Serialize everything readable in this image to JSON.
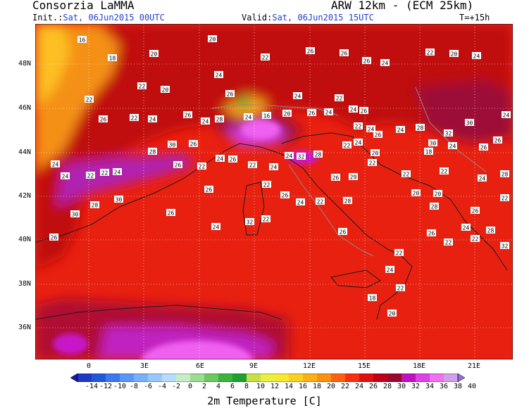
{
  "header": {
    "org": "Consorzia LaMMA",
    "model": "ARW 12km - (ECM 25km)",
    "init_label": "Init.:",
    "init_value": "Sat, 06Jun2015 00UTC",
    "valid_label": "Valid:",
    "valid_value": "Sat, 06Jun2015 15UTC",
    "step": "T=+15h"
  },
  "axes": {
    "lat_labels": [
      "48N",
      "46N",
      "44N",
      "42N",
      "40N",
      "38N",
      "36N"
    ],
    "lon_labels": [
      "0",
      "3E",
      "6E",
      "9E",
      "12E",
      "15E",
      "18E",
      "21E"
    ]
  },
  "colorbar": {
    "title": "2m Temperature [C]",
    "ticks": [
      "-14",
      "-12",
      "-10",
      "-8",
      "-6",
      "-4",
      "-2",
      "0",
      "2",
      "4",
      "6",
      "8",
      "10",
      "12",
      "14",
      "16",
      "18",
      "20",
      "22",
      "24",
      "26",
      "28",
      "30",
      "32",
      "34",
      "36",
      "38",
      "40"
    ],
    "colors": [
      "#1818a8",
      "#1c3ac4",
      "#2058dc",
      "#3c78ec",
      "#5a96f4",
      "#78b0f8",
      "#98c8fb",
      "#b8dcfd",
      "#c8ecc8",
      "#9cdc90",
      "#6cc860",
      "#3cb43c",
      "#20a030",
      "#c8e048",
      "#e8f040",
      "#f8e830",
      "#fcd020",
      "#fcb018",
      "#fc9010",
      "#fc6010",
      "#f83010",
      "#e01010",
      "#c00018",
      "#980830",
      "#c010c0",
      "#e040e8",
      "#f070f0",
      "#d0a0e8",
      "#9070d8"
    ]
  },
  "point_labels": [
    {
      "t": "16"
    },
    {
      "t": "18"
    },
    {
      "t": "20"
    },
    {
      "t": "20"
    },
    {
      "t": "22"
    },
    {
      "t": "20"
    },
    {
      "t": "24"
    },
    {
      "t": "22"
    },
    {
      "t": "26"
    },
    {
      "t": "26"
    },
    {
      "t": "26"
    },
    {
      "t": "24"
    },
    {
      "t": "22"
    },
    {
      "t": "20"
    },
    {
      "t": "24"
    },
    {
      "t": "22"
    },
    {
      "t": "26"
    },
    {
      "t": "22"
    },
    {
      "t": "24"
    },
    {
      "t": "26"
    },
    {
      "t": "24"
    },
    {
      "t": "28"
    },
    {
      "t": "26"
    },
    {
      "t": "24"
    },
    {
      "t": "16"
    },
    {
      "t": "20"
    },
    {
      "t": "24"
    },
    {
      "t": "26"
    },
    {
      "t": "24"
    },
    {
      "t": "22"
    },
    {
      "t": "24"
    },
    {
      "t": "26"
    },
    {
      "t": "22"
    },
    {
      "t": "24"
    },
    {
      "t": "22"
    },
    {
      "t": "24"
    },
    {
      "t": "26"
    },
    {
      "t": "24"
    },
    {
      "t": "28"
    },
    {
      "t": "30"
    },
    {
      "t": "32"
    },
    {
      "t": "30"
    },
    {
      "t": "24"
    },
    {
      "t": "26"
    },
    {
      "t": "24"
    },
    {
      "t": "24"
    },
    {
      "t": "22"
    },
    {
      "t": "22"
    },
    {
      "t": "24"
    },
    {
      "t": "30"
    },
    {
      "t": "26"
    },
    {
      "t": "28"
    },
    {
      "t": "26"
    },
    {
      "t": "22"
    },
    {
      "t": "24"
    },
    {
      "t": "26"
    },
    {
      "t": "22"
    },
    {
      "t": "24"
    },
    {
      "t": "24"
    },
    {
      "t": "32"
    },
    {
      "t": "28"
    },
    {
      "t": "22"
    },
    {
      "t": "20"
    },
    {
      "t": "22"
    },
    {
      "t": "18"
    },
    {
      "t": "24"
    },
    {
      "t": "26"
    },
    {
      "t": "28"
    },
    {
      "t": "24"
    },
    {
      "t": "22"
    },
    {
      "t": "20"
    },
    {
      "t": "20"
    },
    {
      "t": "28"
    },
    {
      "t": "26"
    },
    {
      "t": "22"
    },
    {
      "t": "24"
    },
    {
      "t": "28"
    },
    {
      "t": "22"
    },
    {
      "t": "32"
    },
    {
      "t": "22"
    },
    {
      "t": "26"
    },
    {
      "t": "22"
    },
    {
      "t": "24"
    },
    {
      "t": "22"
    },
    {
      "t": "20"
    },
    {
      "t": "18"
    },
    {
      "t": "26"
    },
    {
      "t": "29"
    },
    {
      "t": "26"
    },
    {
      "t": "28"
    },
    {
      "t": "22"
    },
    {
      "t": "24"
    },
    {
      "t": "26"
    },
    {
      "t": "22"
    },
    {
      "t": "22"
    },
    {
      "t": "32"
    },
    {
      "t": "24"
    },
    {
      "t": "26"
    },
    {
      "t": "26"
    },
    {
      "t": "30"
    },
    {
      "t": "28"
    },
    {
      "t": "30"
    },
    {
      "t": "26"
    }
  ]
}
